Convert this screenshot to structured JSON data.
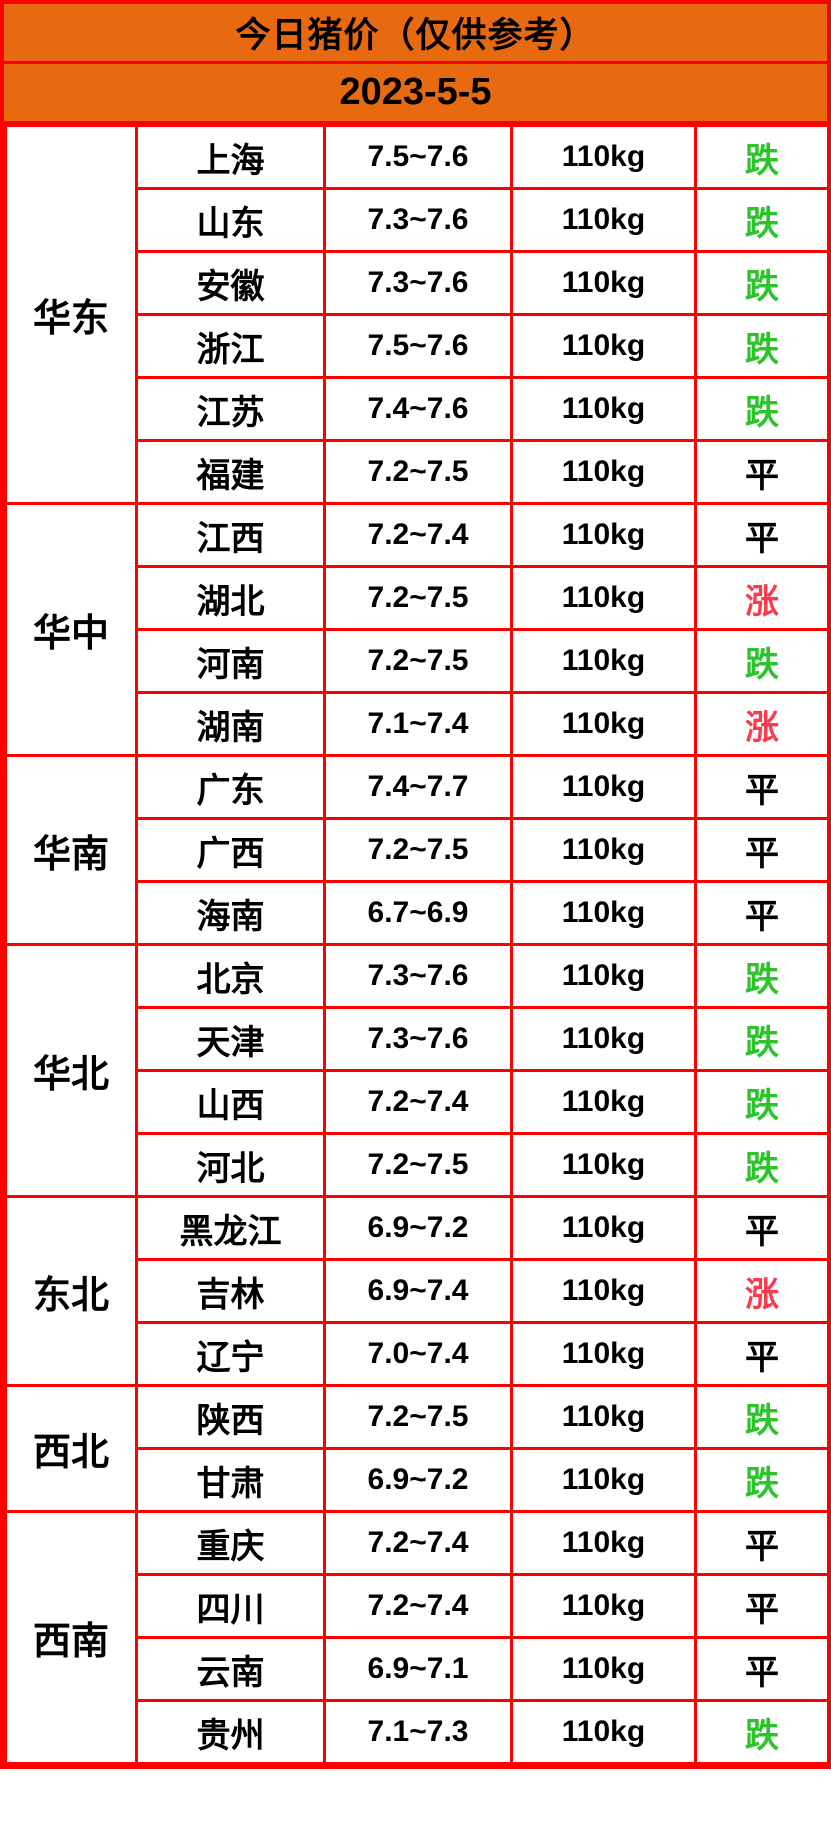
{
  "header": {
    "title": "今日猪价（仅供参考）",
    "date": "2023-5-5"
  },
  "colors": {
    "header_bg": "#E86A10",
    "grid_border": "#FF0000",
    "trend": {
      "跌": "#2BC52B",
      "涨": "#FB3B4C",
      "平": "#000000"
    }
  },
  "chart_data": {
    "type": "table",
    "title": "今日猪价（仅供参考）",
    "subtitle": "2023-5-5",
    "legend": [
      "跌",
      "涨",
      "平"
    ],
    "rows": [
      {
        "region": "华东",
        "province": "上海",
        "price": "7.5~7.6",
        "weight": "110kg",
        "trend": "跌"
      },
      {
        "region": "华东",
        "province": "山东",
        "price": "7.3~7.6",
        "weight": "110kg",
        "trend": "跌"
      },
      {
        "region": "华东",
        "province": "安徽",
        "price": "7.3~7.6",
        "weight": "110kg",
        "trend": "跌"
      },
      {
        "region": "华东",
        "province": "浙江",
        "price": "7.5~7.6",
        "weight": "110kg",
        "trend": "跌"
      },
      {
        "region": "华东",
        "province": "江苏",
        "price": "7.4~7.6",
        "weight": "110kg",
        "trend": "跌"
      },
      {
        "region": "华东",
        "province": "福建",
        "price": "7.2~7.5",
        "weight": "110kg",
        "trend": "平"
      },
      {
        "region": "华中",
        "province": "江西",
        "price": "7.2~7.4",
        "weight": "110kg",
        "trend": "平"
      },
      {
        "region": "华中",
        "province": "湖北",
        "price": "7.2~7.5",
        "weight": "110kg",
        "trend": "涨"
      },
      {
        "region": "华中",
        "province": "河南",
        "price": "7.2~7.5",
        "weight": "110kg",
        "trend": "跌"
      },
      {
        "region": "华中",
        "province": "湖南",
        "price": "7.1~7.4",
        "weight": "110kg",
        "trend": "涨"
      },
      {
        "region": "华南",
        "province": "广东",
        "price": "7.4~7.7",
        "weight": "110kg",
        "trend": "平"
      },
      {
        "region": "华南",
        "province": "广西",
        "price": "7.2~7.5",
        "weight": "110kg",
        "trend": "平"
      },
      {
        "region": "华南",
        "province": "海南",
        "price": "6.7~6.9",
        "weight": "110kg",
        "trend": "平"
      },
      {
        "region": "华北",
        "province": "北京",
        "price": "7.3~7.6",
        "weight": "110kg",
        "trend": "跌"
      },
      {
        "region": "华北",
        "province": "天津",
        "price": "7.3~7.6",
        "weight": "110kg",
        "trend": "跌"
      },
      {
        "region": "华北",
        "province": "山西",
        "price": "7.2~7.4",
        "weight": "110kg",
        "trend": "跌"
      },
      {
        "region": "华北",
        "province": "河北",
        "price": "7.2~7.5",
        "weight": "110kg",
        "trend": "跌"
      },
      {
        "region": "东北",
        "province": "黑龙江",
        "price": "6.9~7.2",
        "weight": "110kg",
        "trend": "平"
      },
      {
        "region": "东北",
        "province": "吉林",
        "price": "6.9~7.4",
        "weight": "110kg",
        "trend": "涨"
      },
      {
        "region": "东北",
        "province": "辽宁",
        "price": "7.0~7.4",
        "weight": "110kg",
        "trend": "平"
      },
      {
        "region": "西北",
        "province": "陕西",
        "price": "7.2~7.5",
        "weight": "110kg",
        "trend": "跌"
      },
      {
        "region": "西北",
        "province": "甘肃",
        "price": "6.9~7.2",
        "weight": "110kg",
        "trend": "跌"
      },
      {
        "region": "西南",
        "province": "重庆",
        "price": "7.2~7.4",
        "weight": "110kg",
        "trend": "平"
      },
      {
        "region": "西南",
        "province": "四川",
        "price": "7.2~7.4",
        "weight": "110kg",
        "trend": "平"
      },
      {
        "region": "西南",
        "province": "云南",
        "price": "6.9~7.1",
        "weight": "110kg",
        "trend": "平"
      },
      {
        "region": "西南",
        "province": "贵州",
        "price": "7.1~7.3",
        "weight": "110kg",
        "trend": "跌"
      }
    ]
  }
}
